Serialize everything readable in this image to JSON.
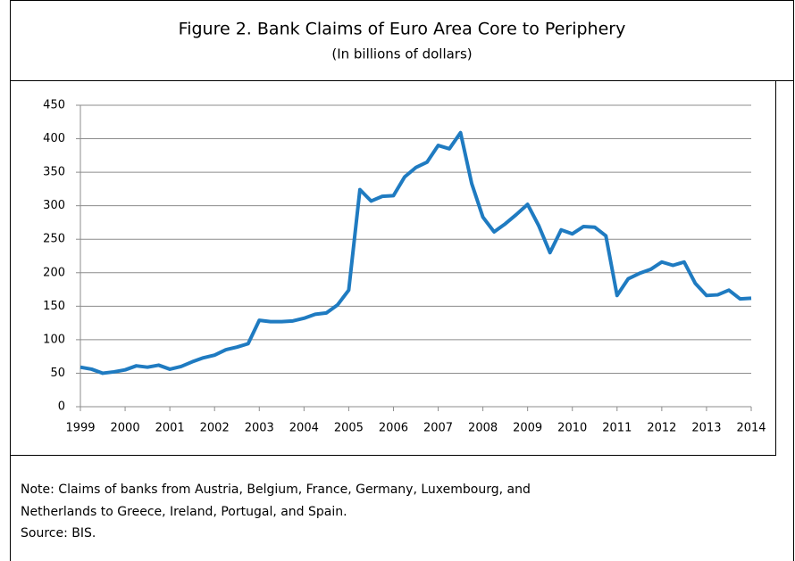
{
  "chart_data": {
    "type": "line",
    "title": "Figure 2. Bank Claims of Euro Area Core to Periphery",
    "subtitle": "(In billions of dollars)",
    "x": [
      1999,
      1999.25,
      1999.5,
      1999.75,
      2000,
      2000.25,
      2000.5,
      2000.75,
      2001,
      2001.25,
      2001.5,
      2001.75,
      2002,
      2002.25,
      2002.5,
      2002.75,
      2003,
      2003.25,
      2003.5,
      2003.75,
      2004,
      2004.25,
      2004.5,
      2004.75,
      2005,
      2005.25,
      2005.5,
      2005.75,
      2006,
      2006.25,
      2006.5,
      2006.75,
      2007,
      2007.25,
      2007.5,
      2007.75,
      2008,
      2008.25,
      2008.5,
      2008.75,
      2009,
      2009.25,
      2009.5,
      2009.75,
      2010,
      2010.25,
      2010.5,
      2010.75,
      2011,
      2011.25,
      2011.5,
      2011.75,
      2012,
      2012.25,
      2012.5,
      2012.75,
      2013,
      2013.25,
      2013.5,
      2013.75,
      2014
    ],
    "series": [
      {
        "color": "#1f7bc1",
        "values": [
          59,
          56,
          50,
          52,
          55,
          61,
          59,
          62,
          56,
          60,
          67,
          73,
          77,
          85,
          89,
          94,
          129,
          127,
          127,
          128,
          132,
          138,
          140,
          152,
          174,
          324,
          307,
          314,
          315,
          343,
          357,
          365,
          390,
          385,
          409,
          333,
          283,
          261,
          273,
          287,
          302,
          270,
          230,
          264,
          258,
          269,
          268,
          255,
          166,
          191,
          199,
          205,
          216,
          211,
          216,
          184,
          166,
          167,
          174,
          161,
          162
        ]
      }
    ],
    "xlim": [
      1999,
      2014
    ],
    "xticks": [
      1999,
      2000,
      2001,
      2002,
      2003,
      2004,
      2005,
      2006,
      2007,
      2008,
      2009,
      2010,
      2011,
      2012,
      2013,
      2014
    ],
    "ylim": [
      0,
      450
    ],
    "yticks": [
      0,
      50,
      100,
      150,
      200,
      250,
      300,
      350,
      400,
      450
    ],
    "grid": true
  },
  "footer": {
    "lines": [
      "Note: Claims of banks from Austria, Belgium, France, Germany, Luxembourg, and",
      "Netherlands to Greece, Ireland, Portugal, and Spain.",
      "Source: BIS."
    ]
  }
}
